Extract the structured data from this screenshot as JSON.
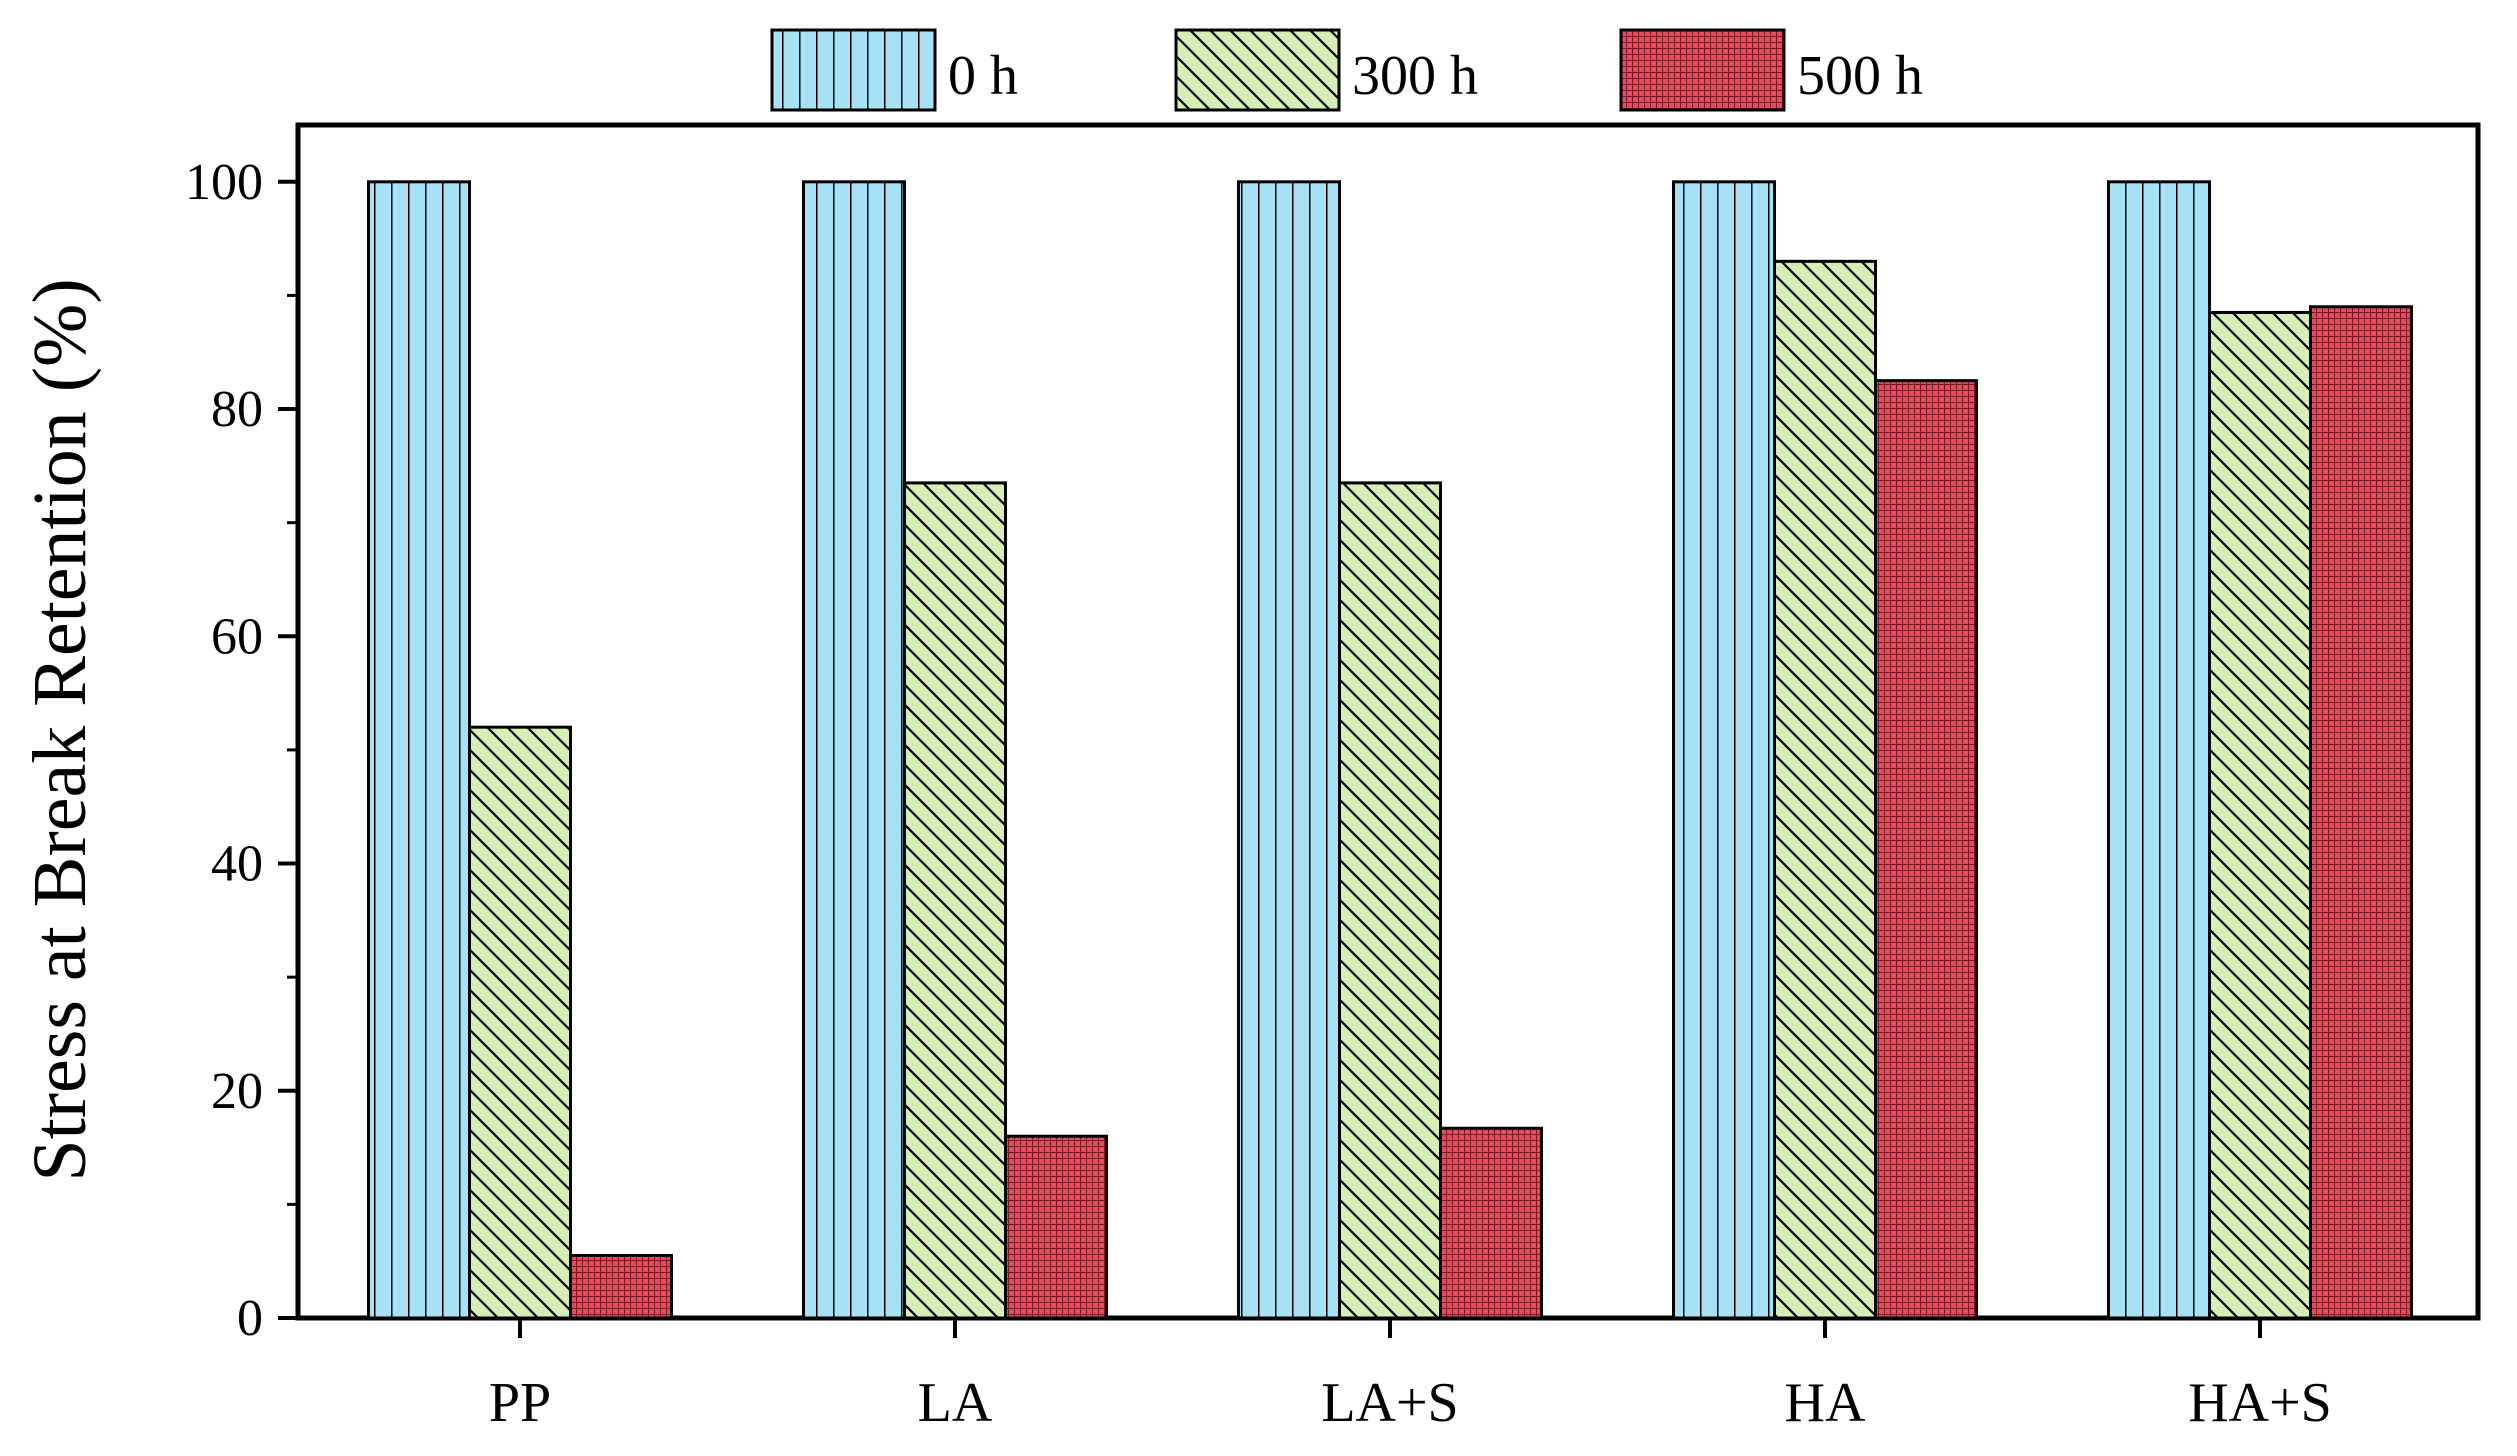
{
  "chart_data": {
    "type": "bar",
    "title": "",
    "xlabel": "",
    "ylabel": "Stress at Break Retention (%)",
    "ylim": [
      0,
      105
    ],
    "yticks": [
      0,
      20,
      40,
      60,
      80,
      100
    ],
    "ytick_labels": [
      "0",
      "20",
      "40",
      "60",
      "80",
      "100"
    ],
    "categories": [
      "PP",
      "LA",
      "LA+S",
      "HA",
      "HA+S"
    ],
    "legend_position": "top-center",
    "series": [
      {
        "name": "0 h",
        "values": [
          100,
          100,
          100,
          100,
          100
        ],
        "color": "#a6e1f4",
        "pattern": "vertical-lines"
      },
      {
        "name": "300 h",
        "values": [
          52,
          73.5,
          73.5,
          93,
          88.5
        ],
        "color": "#d5efb6",
        "pattern": "diagonal-lines"
      },
      {
        "name": "500 h",
        "values": [
          5.5,
          16,
          16.7,
          82.5,
          89
        ],
        "color": "#e34d62",
        "pattern": "fine-grid"
      }
    ]
  }
}
